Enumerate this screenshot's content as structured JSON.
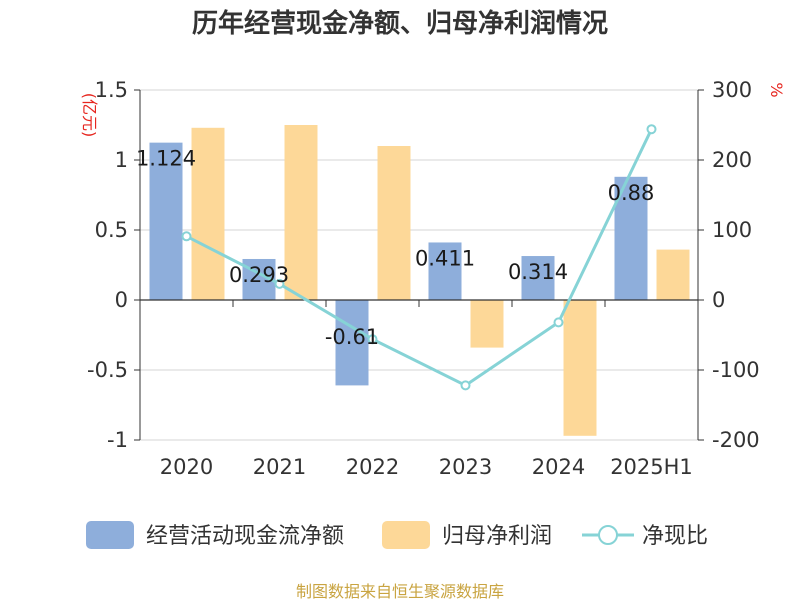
{
  "chart_data": {
    "type": "bar",
    "title": "历年经营现金净额、归母净利润情况",
    "categories": [
      "2020",
      "2021",
      "2022",
      "2023",
      "2024",
      "2025H1"
    ],
    "series": [
      {
        "name": "经营活动现金流净额",
        "type": "bar",
        "axis": "left",
        "color": "#8eaedb",
        "values": [
          1.124,
          0.293,
          -0.61,
          0.411,
          0.314,
          0.88
        ],
        "labels": [
          "1.124",
          "0.293",
          "-0.61",
          "0.411",
          "0.314",
          "0.88"
        ]
      },
      {
        "name": "归母净利润",
        "type": "bar",
        "axis": "left",
        "color": "#fdd898",
        "values": [
          1.23,
          1.25,
          1.1,
          -0.34,
          -0.97,
          0.36
        ]
      },
      {
        "name": "净现比",
        "type": "line",
        "axis": "right",
        "color": "#86d3d6",
        "values": [
          91,
          23,
          -56,
          -122,
          -32,
          244
        ]
      }
    ],
    "y_left": {
      "unit": "(亿元)",
      "min": -1,
      "max": 1.5,
      "ticks": [
        "1.5",
        "1",
        "0.5",
        "0",
        "-0.5",
        "-1"
      ],
      "tick_values": [
        1.5,
        1,
        0.5,
        0,
        -0.5,
        -1
      ]
    },
    "y_right": {
      "unit": "%",
      "min": -200,
      "max": 300,
      "ticks": [
        "300",
        "200",
        "100",
        "0",
        "-100",
        "-200"
      ],
      "tick_values": [
        300,
        200,
        100,
        0,
        -100,
        -200
      ]
    },
    "grid": true,
    "legend_position": "bottom"
  },
  "source": "制图数据来自恒生聚源数据库"
}
